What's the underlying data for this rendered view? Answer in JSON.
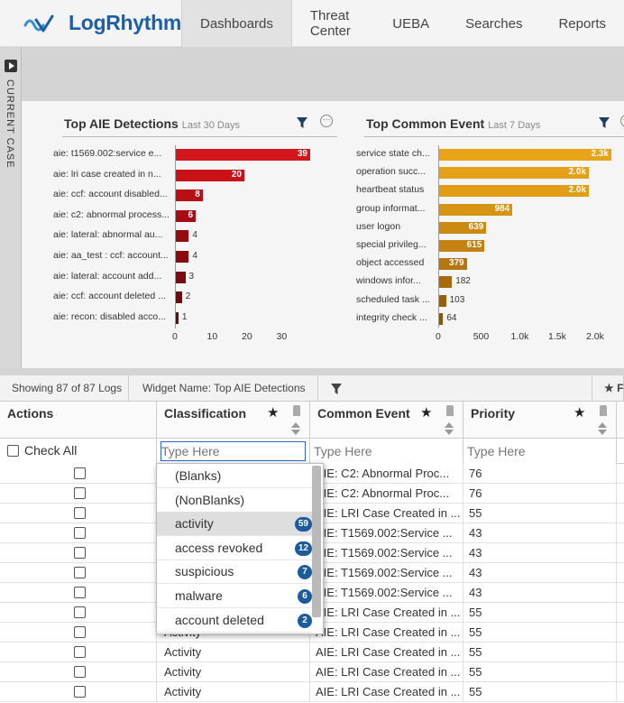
{
  "app": {
    "brand": "LogRhythm",
    "brand_color": "#1a5fa8"
  },
  "nav": {
    "tabs": [
      {
        "label": "Dashboards",
        "active": true
      },
      {
        "label": "Threat Center"
      },
      {
        "label": "UEBA"
      },
      {
        "label": "Searches"
      },
      {
        "label": "Reports"
      }
    ]
  },
  "case_bar": {
    "label": "CURRENT CASE"
  },
  "widgets": {
    "left": {
      "title": "Top AIE Detections",
      "subtitle": "Last 30 Days"
    },
    "right": {
      "title": "Top Common Event",
      "subtitle": "Last 7 Days"
    }
  },
  "chart_data": [
    {
      "type": "bar",
      "orientation": "horizontal",
      "title": "Top AIE Detections",
      "subtitle": "Last 30 Days",
      "categories": [
        "aie: t1569.002:service e...",
        "aie: lri case created in n...",
        "aie: ccf: account disabled...",
        "aie: c2: abnormal process...",
        "aie: lateral: abnormal au...",
        "aie: aa_test : ccf: account...",
        "aie: lateral: account add...",
        "aie: ccf: account deleted ...",
        "aie: recon: disabled acco..."
      ],
      "values": [
        39,
        20,
        8,
        6,
        4,
        4,
        3,
        2,
        1
      ],
      "value_labels": [
        "39",
        "20",
        "8",
        "6",
        "4",
        "4",
        "3",
        "2",
        "1"
      ],
      "xlim": [
        0,
        39
      ],
      "xticks": [
        "0",
        "10",
        "20",
        "30"
      ],
      "colors": [
        "#d2161c",
        "#c81218",
        "#b80f14",
        "#a50d12",
        "#960b10",
        "#8a0a0e",
        "#7c090d",
        "#70080c",
        "#66070b"
      ]
    },
    {
      "type": "bar",
      "orientation": "horizontal",
      "title": "Top Common Event",
      "subtitle": "Last 7 Days",
      "categories": [
        "service state ch...",
        "operation succ...",
        "heartbeat status",
        "group informat...",
        "user logon",
        "special privileg...",
        "object accessed",
        "windows infor...",
        "scheduled task ...",
        "integrity check ..."
      ],
      "values": [
        2300,
        2000,
        2000,
        984,
        639,
        615,
        379,
        182,
        103,
        64
      ],
      "value_labels": [
        "2.3k",
        "2.0k",
        "2.0k",
        "984",
        "639",
        "615",
        "379",
        "182",
        "103",
        "64"
      ],
      "xlim": [
        0,
        2300
      ],
      "xticks": [
        "0",
        "500",
        "1.0k",
        "1.5k",
        "2.0k"
      ],
      "colors": [
        "#e8a317",
        "#e4a016",
        "#e09d15",
        "#d69414",
        "#cb8a12",
        "#c38211",
        "#b6760f",
        "#a86a0d",
        "#9a5f0b",
        "#8e560a"
      ]
    }
  ],
  "toolbar": {
    "showing": "Showing 87 of 87 Logs",
    "widget_name": "Widget Name: Top AIE Detections",
    "cut": "F"
  },
  "grid": {
    "columns": [
      {
        "label": "Actions"
      },
      {
        "label": "Classification"
      },
      {
        "label": "Common Event"
      },
      {
        "label": "Priority"
      }
    ],
    "check_all": "Check All",
    "filter_placeholder": "Type Here",
    "rows": [
      {
        "classification": "",
        "event": "AIE: C2: Abnormal Proc...",
        "priority": "76"
      },
      {
        "classification": "",
        "event": "AIE: C2: Abnormal Proc...",
        "priority": "76"
      },
      {
        "classification": "",
        "event": "AIE: LRI Case Created in ...",
        "priority": "55"
      },
      {
        "classification": "",
        "event": "AIE: T1569.002:Service ...",
        "priority": "43"
      },
      {
        "classification": "",
        "event": "AIE: T1569.002:Service ...",
        "priority": "43"
      },
      {
        "classification": "",
        "event": "AIE: T1569.002:Service ...",
        "priority": "43"
      },
      {
        "classification": "",
        "event": "AIE: T1569.002:Service ...",
        "priority": "43"
      },
      {
        "classification": "",
        "event": "AIE: LRI Case Created in ...",
        "priority": "55"
      },
      {
        "classification": "Activity",
        "event": "AIE: LRI Case Created in ...",
        "priority": "55"
      },
      {
        "classification": "Activity",
        "event": "AIE: LRI Case Created in ...",
        "priority": "55"
      },
      {
        "classification": "Activity",
        "event": "AIE: LRI Case Created in ...",
        "priority": "55"
      },
      {
        "classification": "Activity",
        "event": "AIE: LRI Case Created in ...",
        "priority": "55"
      }
    ]
  },
  "dropdown": {
    "items": [
      {
        "label": "(Blanks)",
        "count": ""
      },
      {
        "label": "(NonBlanks)",
        "count": ""
      },
      {
        "label": "activity",
        "count": "59",
        "selected": true
      },
      {
        "label": "access revoked",
        "count": "12"
      },
      {
        "label": "suspicious",
        "count": "7"
      },
      {
        "label": "malware",
        "count": "6"
      },
      {
        "label": "account deleted",
        "count": "2"
      }
    ]
  }
}
